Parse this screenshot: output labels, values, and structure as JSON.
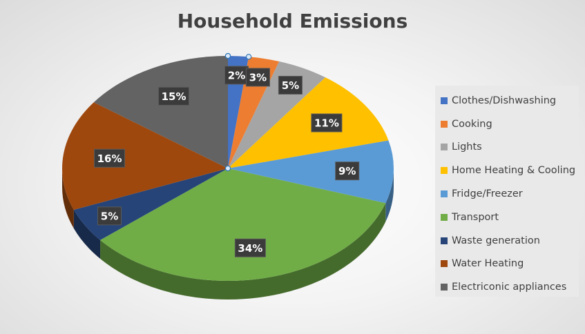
{
  "chart_data": {
    "type": "pie",
    "title": "Household Emissions",
    "slices": [
      {
        "label": "Clothes/Dishwashing",
        "value": 2,
        "display": "2%",
        "color": "#4472C4"
      },
      {
        "label": "Cooking",
        "value": 3,
        "display": "3%",
        "color": "#ED7D31"
      },
      {
        "label": "Lights",
        "value": 5,
        "display": "5%",
        "color": "#A5A5A5"
      },
      {
        "label": "Home Heating & Cooling",
        "value": 11,
        "display": "11%",
        "color": "#FFC000"
      },
      {
        "label": "Fridge/Freezer",
        "value": 9,
        "display": "9%",
        "color": "#5B9BD5"
      },
      {
        "label": "Transport",
        "value": 34,
        "display": "34%",
        "color": "#70AD47"
      },
      {
        "label": "Waste generation",
        "value": 5,
        "display": "5%",
        "color": "#264478"
      },
      {
        "label": "Water Heating",
        "value": 16,
        "display": "16%",
        "color": "#9E480E"
      },
      {
        "label": "Electriconic appliances",
        "value": 15,
        "display": "15%",
        "color": "#636363"
      }
    ],
    "legend_position": "right",
    "selected_slice": "Clothes/Dishwashing"
  }
}
